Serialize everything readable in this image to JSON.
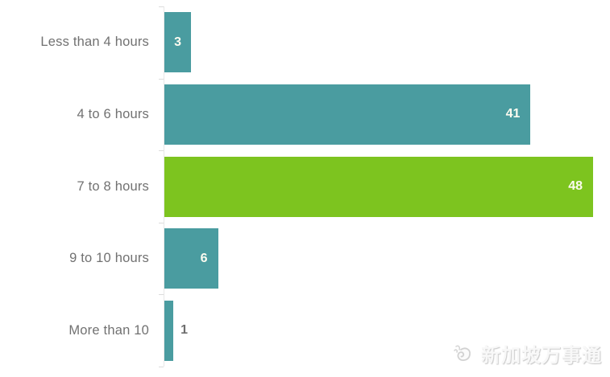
{
  "chart_data": {
    "type": "bar",
    "orientation": "horizontal",
    "title": "",
    "xlabel": "",
    "ylabel": "",
    "categories": [
      "Less than 4 hours",
      "4 to 6 hours",
      "7 to 8 hours",
      "9 to 10 hours",
      "More than 10"
    ],
    "values": [
      3,
      41,
      48,
      6,
      1
    ],
    "xlim": [
      0,
      48
    ],
    "grid": false,
    "legend": false,
    "highlight_index": 2,
    "bar_colors": [
      "#4A9CA0",
      "#4A9CA0",
      "#7DC41F",
      "#4A9CA0",
      "#4A9CA0"
    ],
    "value_labels": [
      "3",
      "41",
      "48",
      "6",
      "1"
    ],
    "value_label_placement": [
      "inside-center",
      "inside-right",
      "inside-right",
      "inside-right",
      "outside"
    ]
  },
  "colors": {
    "teal": "#4A9CA0",
    "green": "#7DC41F",
    "category_label": "#717171",
    "value_inside": "#FCFBF0",
    "value_outside": "#6E6E6E",
    "axis_line": "#E7E7E7",
    "background": "#FFFFFF"
  },
  "watermark": {
    "text": "新加坡万事通",
    "icon": "merlion-icon"
  }
}
